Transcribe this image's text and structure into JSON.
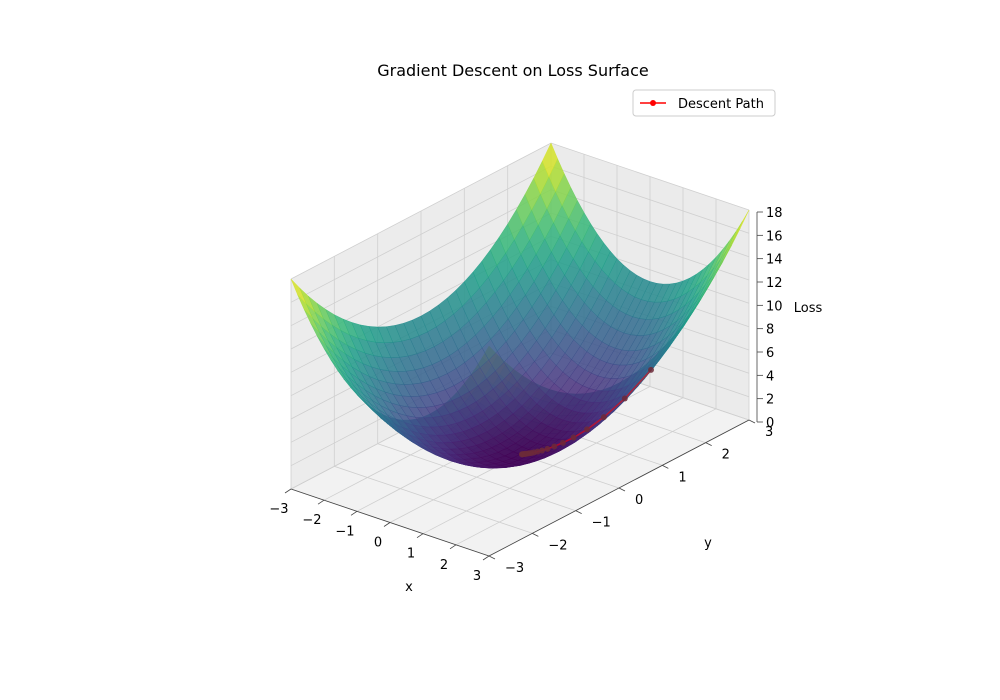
{
  "chart_data": {
    "type": "surface3d",
    "title": "Gradient Descent on Loss Surface",
    "xlabel": "x",
    "ylabel": "y",
    "zlabel": "Loss",
    "function": "loss = x^2 + y^2",
    "xlim": [
      -3,
      3
    ],
    "ylim": [
      -3,
      3
    ],
    "zlim": [
      0,
      18
    ],
    "x_ticks": [
      -3,
      -2,
      -1,
      0,
      1,
      2,
      3
    ],
    "y_ticks": [
      -3,
      -2,
      -1,
      0,
      1,
      2,
      3
    ],
    "z_ticks": [
      0,
      2,
      4,
      6,
      8,
      10,
      12,
      14,
      16,
      18
    ],
    "x_tick_labels": [
      "−3",
      "−2",
      "−1",
      "0",
      "1",
      "2",
      "3"
    ],
    "y_tick_labels": [
      "−3",
      "−2",
      "−1",
      "0",
      "1",
      "2",
      "3"
    ],
    "z_tick_labels": [
      "0",
      "2",
      "4",
      "6",
      "8",
      "10",
      "12",
      "14",
      "16",
      "18"
    ],
    "colormap": "viridis",
    "grid": true,
    "legend_position": "top-right",
    "series": [
      {
        "name": "Descent Path",
        "color": "#ff0000",
        "x": [
          2.0,
          1.6,
          1.28,
          1.024,
          0.819,
          0.655,
          0.524,
          0.419,
          0.336,
          0.268,
          0.215,
          0.172,
          0.137,
          0.11,
          0.088,
          0.07,
          0.056,
          0.045,
          0.036,
          0.029
        ],
        "y": [
          1.5,
          1.2,
          0.96,
          0.768,
          0.614,
          0.492,
          0.393,
          0.315,
          0.252,
          0.201,
          0.161,
          0.129,
          0.103,
          0.082,
          0.066,
          0.053,
          0.042,
          0.034,
          0.027,
          0.022
        ],
        "z": [
          6.25,
          4.0,
          2.56,
          1.638,
          1.048,
          0.671,
          0.429,
          0.275,
          0.176,
          0.113,
          0.072,
          0.046,
          0.029,
          0.019,
          0.012,
          0.008,
          0.005,
          0.003,
          0.002,
          0.001
        ]
      }
    ]
  }
}
